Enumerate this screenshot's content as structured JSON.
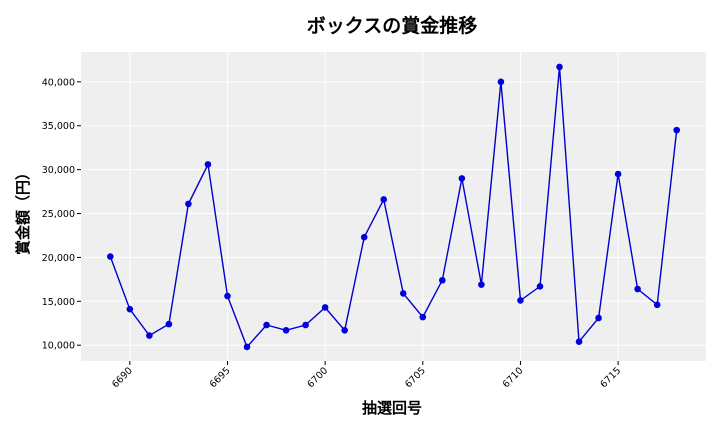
{
  "chart_data": {
    "type": "line",
    "title": "ボックスの賞金推移",
    "xlabel": "抽選回号",
    "ylabel": "賞金額（円）",
    "x": [
      6689,
      6690,
      6691,
      6692,
      6693,
      6694,
      6695,
      6696,
      6697,
      6698,
      6699,
      6700,
      6701,
      6702,
      6703,
      6704,
      6705,
      6706,
      6707,
      6708,
      6709,
      6710,
      6711,
      6712,
      6713,
      6714,
      6715,
      6716,
      6717,
      6718
    ],
    "series": [
      {
        "name": "",
        "values": [
          20100,
          14100,
          11100,
          12400,
          26100,
          30600,
          15600,
          9800,
          12300,
          11700,
          12300,
          14300,
          11700,
          22300,
          26600,
          15900,
          13200,
          17400,
          29000,
          16900,
          40000,
          15100,
          16700,
          41700,
          10400,
          13100,
          29500,
          16400,
          14600,
          34500
        ]
      }
    ],
    "xticks": [
      6690,
      6695,
      6700,
      6705,
      6710,
      6715
    ],
    "xtick_labels": [
      "6690",
      "6695",
      "6700",
      "6705",
      "6710",
      "6715"
    ],
    "yticks": [
      10000,
      15000,
      20000,
      25000,
      30000,
      35000,
      40000
    ],
    "ytick_labels": [
      "10,000",
      "15,000",
      "20,000",
      "25,000",
      "30,000",
      "35,000",
      "40,000"
    ],
    "xlim": [
      6687.5,
      6719.5
    ],
    "ylim": [
      8200,
      43400
    ],
    "grid": true,
    "colors": {
      "line": "#0000cc",
      "marker": "#0000dd",
      "plot_bg": "#efefef",
      "grid": "#ffffff"
    }
  }
}
